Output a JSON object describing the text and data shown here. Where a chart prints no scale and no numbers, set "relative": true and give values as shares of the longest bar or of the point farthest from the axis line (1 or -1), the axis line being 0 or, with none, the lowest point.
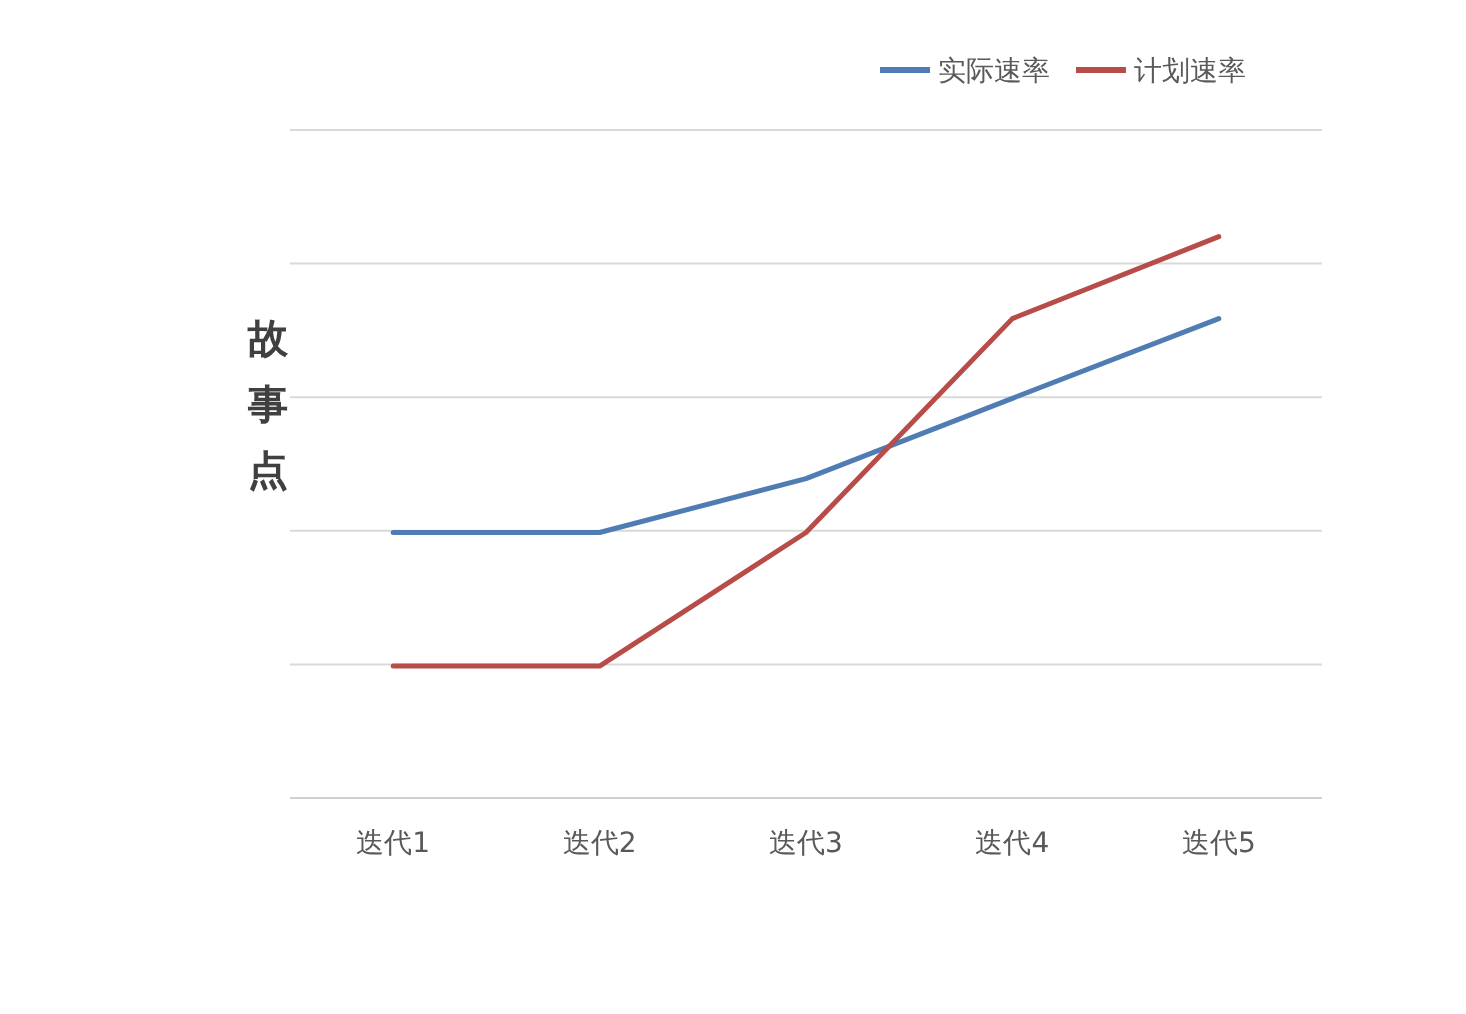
{
  "chart_data": {
    "type": "line",
    "ylabel": "故事点",
    "categories": [
      "迭代1",
      "迭代2",
      "迭代3",
      "迭代4",
      "迭代5"
    ],
    "relative": true,
    "grid": "y",
    "legend": "top right",
    "line_style": "solid",
    "marker": "none",
    "series": [
      {
        "name": "实际速率",
        "color": "#4f7db3",
        "values": [
          0.473,
          0.473,
          0.569,
          0.712,
          0.854
        ]
      },
      {
        "name": "计划速率",
        "color": "#b84c49",
        "values": [
          0.235,
          0.235,
          0.473,
          0.854,
          1
        ]
      }
    ]
  }
}
